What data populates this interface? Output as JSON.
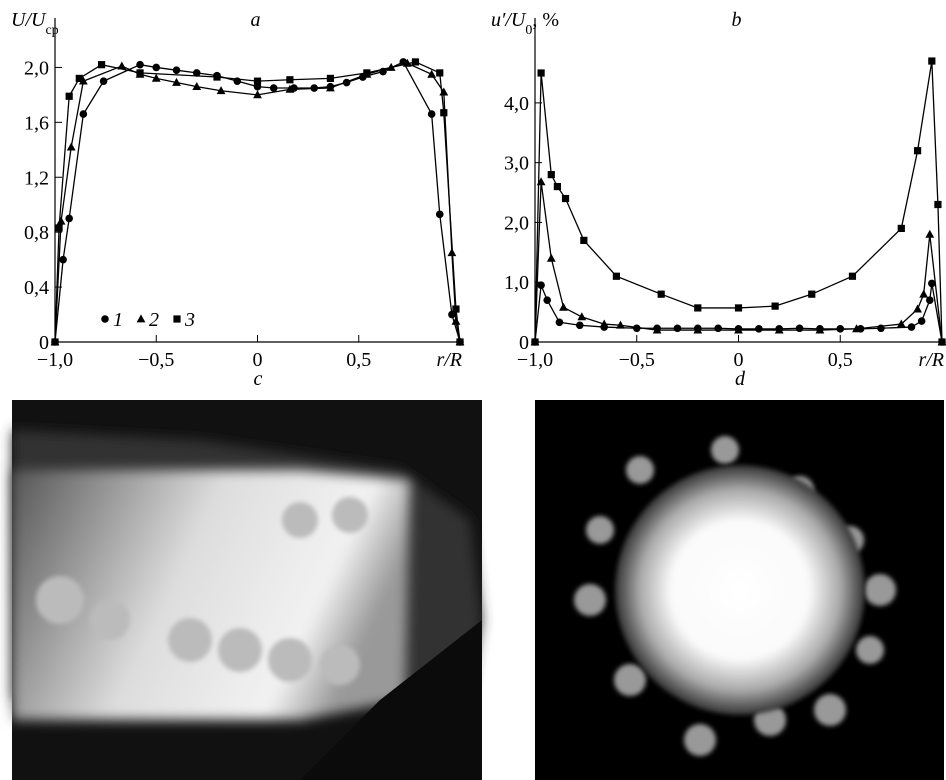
{
  "chart_data": [
    {
      "type": "line",
      "title": "a",
      "y_label": [
        {
          "text": "U/U"
        },
        {
          "text": "cp",
          "sub": true
        }
      ],
      "x_label": "r/R",
      "xlim": [
        -1.0,
        1.0
      ],
      "xticks": [
        {
          "value": -1.0,
          "label": "−1,0"
        },
        {
          "value": -0.5,
          "label": "−0,5"
        },
        0,
        {
          "value": 0.5,
          "label": "0,5"
        }
      ],
      "ylim": [
        0,
        2.36
      ],
      "yticks": [
        0,
        {
          "value": 0.4,
          "label": "0,4"
        },
        {
          "value": 0.8,
          "label": "0,8"
        },
        {
          "value": 1.2,
          "label": "1,2"
        },
        {
          "value": 1.6,
          "label": "1,6"
        },
        {
          "value": 2.0,
          "label": "2,0"
        }
      ],
      "legend": true,
      "series": [
        {
          "name": "1",
          "marker": "circle",
          "color": "#000",
          "x": [
            -1.0,
            -0.96,
            -0.93,
            -0.86,
            -0.76,
            -0.58,
            -0.5,
            -0.4,
            -0.3,
            -0.2,
            -0.1,
            0,
            0.08,
            0.18,
            0.28,
            0.36,
            0.44,
            0.52,
            0.62,
            0.72,
            0.86,
            0.9,
            0.96,
            1.0
          ],
          "values": [
            0,
            0.6,
            0.9,
            1.66,
            1.9,
            2.02,
            2.0,
            1.98,
            1.96,
            1.94,
            1.9,
            1.86,
            1.85,
            1.85,
            1.85,
            1.86,
            1.89,
            1.93,
            1.97,
            2.04,
            1.66,
            0.93,
            0.2,
            0
          ]
        },
        {
          "name": "2",
          "marker": "triangle",
          "color": "#000",
          "x": [
            -1.0,
            -0.97,
            -0.92,
            -0.86,
            -0.67,
            -0.58,
            -0.5,
            -0.4,
            -0.3,
            -0.18,
            0,
            0.16,
            0.36,
            0.54,
            0.66,
            0.74,
            0.86,
            0.92,
            0.96,
            0.98,
            1.0
          ],
          "values": [
            0,
            0.88,
            1.42,
            1.9,
            2.01,
            1.95,
            1.92,
            1.89,
            1.86,
            1.83,
            1.8,
            1.84,
            1.85,
            1.95,
            2.0,
            2.03,
            1.95,
            1.82,
            0.65,
            0.15,
            0
          ]
        },
        {
          "name": "3",
          "marker": "square",
          "color": "#000",
          "x": [
            -1.0,
            -0.98,
            -0.93,
            -0.88,
            -0.77,
            -0.58,
            -0.2,
            0,
            0.16,
            0.36,
            0.54,
            0.78,
            0.9,
            0.92,
            0.98,
            1.0
          ],
          "values": [
            0,
            0.83,
            1.79,
            1.92,
            2.02,
            1.96,
            1.93,
            1.9,
            1.91,
            1.92,
            1.96,
            2.04,
            1.96,
            1.67,
            0.24,
            0
          ]
        }
      ]
    },
    {
      "type": "line",
      "title": "b",
      "y_label": [
        {
          "text": "u′/U"
        },
        {
          "text": "0",
          "sub": true
        },
        {
          "text": ", %"
        }
      ],
      "x_label": "r/R",
      "xlim": [
        -1.0,
        1.0
      ],
      "xticks": [
        {
          "value": -1.0,
          "label": "−1,0"
        },
        {
          "value": -0.5,
          "label": "−0,5"
        },
        0,
        {
          "value": 0.5,
          "label": "0,5"
        }
      ],
      "ylim": [
        0,
        5.42
      ],
      "yticks": [
        0,
        {
          "value": 1.0,
          "label": "1,0"
        },
        {
          "value": 2.0,
          "label": "2,0"
        },
        {
          "value": 3.0,
          "label": "3,0"
        },
        {
          "value": 4.0,
          "label": "4,0"
        }
      ],
      "legend": false,
      "series": [
        {
          "marker": "circle",
          "color": "#000",
          "x": [
            -1.0,
            -0.97,
            -0.94,
            -0.88,
            -0.78,
            -0.66,
            -0.5,
            -0.4,
            -0.3,
            -0.2,
            -0.1,
            0,
            0.1,
            0.2,
            0.3,
            0.4,
            0.5,
            0.6,
            0.7,
            0.85,
            0.9,
            0.94,
            0.95,
            1.0
          ],
          "values": [
            0,
            0.95,
            0.7,
            0.33,
            0.28,
            0.25,
            0.23,
            0.23,
            0.23,
            0.23,
            0.23,
            0.22,
            0.22,
            0.22,
            0.23,
            0.22,
            0.22,
            0.22,
            0.23,
            0.25,
            0.35,
            0.7,
            0.98,
            0
          ]
        },
        {
          "marker": "triangle",
          "color": "#000",
          "x": [
            -1.0,
            -0.97,
            -0.92,
            -0.86,
            -0.77,
            -0.66,
            -0.58,
            -0.4,
            -0.2,
            0,
            0.2,
            0.4,
            0.58,
            0.8,
            0.88,
            0.91,
            0.94,
            1.0
          ],
          "values": [
            0,
            2.68,
            1.4,
            0.58,
            0.42,
            0.3,
            0.28,
            0.2,
            0.2,
            0.2,
            0.2,
            0.2,
            0.22,
            0.3,
            0.55,
            0.8,
            1.8,
            0
          ]
        },
        {
          "marker": "square",
          "color": "#000",
          "x": [
            -1.0,
            -0.97,
            -0.92,
            -0.89,
            -0.85,
            -0.76,
            -0.6,
            -0.38,
            -0.2,
            0,
            0.18,
            0.36,
            0.56,
            0.8,
            0.88,
            0.95,
            0.98,
            1.0
          ],
          "values": [
            0,
            4.5,
            2.8,
            2.6,
            2.4,
            1.7,
            1.1,
            0.8,
            0.57,
            0.57,
            0.6,
            0.8,
            1.1,
            1.9,
            3.2,
            4.7,
            2.3,
            0
          ]
        }
      ]
    }
  ],
  "image_panels": [
    {
      "label": "c"
    },
    {
      "label": "d"
    }
  ]
}
